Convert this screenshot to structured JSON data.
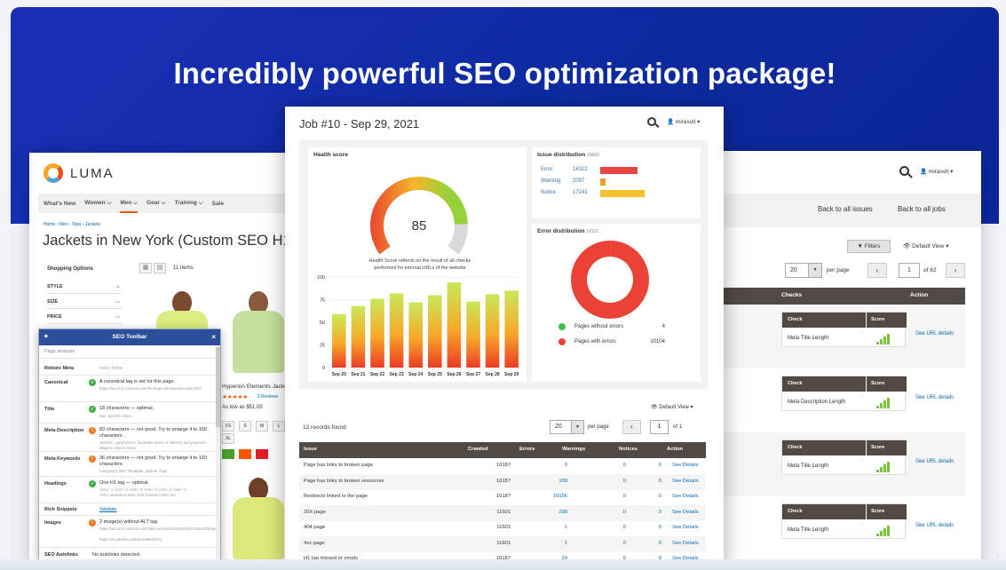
{
  "headline": "Incredibly powerful SEO optimization package!",
  "luma": {
    "brand": "LUMA",
    "nav": [
      "What's New",
      "Women ⌵",
      "Men ⌵",
      "Gear ⌵",
      "Training ⌵",
      "Sale"
    ],
    "breadcrumb": "Home  ›  Men  ›  Tops  ›  Jackets",
    "page_title": "Jackets in New York (Custom SEO H1",
    "shopping_options": "Shopping Options",
    "filters": [
      "STYLE",
      "SIZE",
      "PRICE"
    ],
    "items_count": "11 Items",
    "product_name": "Hyperion Elements Jacket",
    "stars": "★★★★★",
    "reviews": "2  Reviews",
    "price": "As low as $51.00",
    "sizes": [
      "XS",
      "S",
      "M",
      "L",
      "XL"
    ],
    "swatch_colors": [
      "#49a32b",
      "#ff5501",
      "#e31b23"
    ]
  },
  "seo_toolbar": {
    "title": "SEO Toolbar",
    "close": "×",
    "page_analysis": "Page analysis",
    "robots_meta": {
      "label": "Robots Meta",
      "value": "index,follow"
    },
    "canonical": {
      "label": "Canonical",
      "msg": "A canonical tag is set for this page.",
      "sub": "https://seo.m2.mirasvit.com/men/tops-men/jackets-men.html"
    },
    "title_row": {
      "label": "Title",
      "msg": "18 characters — optimal.",
      "sub": "Buy Jackets online"
    },
    "meta_description": {
      "label": "Meta Description",
      "msg": "83 characters — not good. Try to enlarge it to 160 characters.",
      "sub": "Jackets - good prices, favorable terms of delivery and payment - Magento Demo Store"
    },
    "meta_keywords": {
      "label": "Meta Keywords",
      "msg": "36 characters — not good. Try to enlarge it to 160 characters.",
      "sub": "Category's SEO Template: jackets, Tops"
    },
    "headings": {
      "label": "Headings",
      "msg": "One H1 tag — optimal.",
      "sub": "<H1>: 1  <H2>: 0  <H3>: 0  <H4>: 0  <H5>: 0  <H6>: 0",
      "sub2": "<H1> Jackets in New York (Custom SEO H1)"
    },
    "rich_snippets": {
      "label": "Rich Snippets",
      "link": "Validate"
    },
    "images": {
      "label": "Images",
      "msg": "2 image(s) without ALT tag",
      "sub": "https://seo.m2.mirasvit.com/static/version1621002418/frontend/Magento/luma/en_US/images/logo.svg",
      "sub2": "https://en.yandex.ru/watch/59640241"
    },
    "seo_autolinks": {
      "label": "SEO Autolinks",
      "msg": "No autolinks detected"
    }
  },
  "job": {
    "title": "Job #10 - Sep 29, 2021",
    "user": "mirasvit",
    "health": {
      "title": "Health score",
      "score": "85",
      "note": "Health Score reflects on the result of all checks performed for internal URLs of the website"
    },
    "issue_distribution": {
      "title": "Issue distribution",
      "total": "33660",
      "rows": [
        {
          "label": "Error",
          "value": "14322",
          "color": "#e94545"
        },
        {
          "label": "Warning",
          "value": "2097",
          "color": "#f39b32"
        },
        {
          "label": "Notice",
          "value": "17241",
          "color": "#f5c02d"
        }
      ]
    },
    "error_distribution": {
      "title": "Error distribution",
      "total": "14322",
      "legend": [
        {
          "label": "Pages without errors",
          "value": "4",
          "color": "#3bc14a"
        },
        {
          "label": "Pages with errors",
          "value": "10104",
          "color": "#ea4335"
        }
      ]
    },
    "default_view": "Default View",
    "records": "12 records found",
    "per_page_value": "20",
    "per_page": "per page",
    "page": "1",
    "of_pages": "of 1",
    "columns": [
      "Issue",
      "Crawled",
      "Errors",
      "Warnings",
      "Notices",
      "Action"
    ],
    "rows": [
      {
        "issue": "Page has links to broken page",
        "crawled": "10187",
        "errors": "0",
        "warnings": "0",
        "notices": "0",
        "action": "See Details"
      },
      {
        "issue": "Page has links to broken resources",
        "crawled": "10187",
        "errors": "109",
        "warnings": "0",
        "notices": "0",
        "action": "See Details"
      },
      {
        "issue": "Redirects linked to the page",
        "crawled": "10187",
        "errors": "10156",
        "warnings": "0",
        "notices": "0",
        "action": "See Details"
      },
      {
        "issue": "20X page",
        "crawled": "11601",
        "errors": "298",
        "warnings": "0",
        "notices": "0",
        "action": "See Details"
      },
      {
        "issue": "404 page",
        "crawled": "11601",
        "errors": "1",
        "warnings": "0",
        "notices": "0",
        "action": "See Details"
      },
      {
        "issue": "4xx page",
        "crawled": "11601",
        "errors": "1",
        "warnings": "0",
        "notices": "0",
        "action": "See Details"
      },
      {
        "issue": "H1 tag missed or empty",
        "crawled": "10187",
        "errors": "19",
        "warnings": "0",
        "notices": "0",
        "action": "See Details"
      }
    ]
  },
  "issues_window": {
    "user": "mirasvit",
    "back_issues": "Back to all issues",
    "back_jobs": "Back to all jobs",
    "filters": "Filters",
    "default_view": "Default View",
    "per_page_value": "20",
    "per_page": "per page",
    "page": "1",
    "of_pages": "of 62",
    "columns": [
      "Checks",
      "Action"
    ],
    "mini_cols": [
      "Check",
      "Score"
    ],
    "rows": [
      {
        "check": "Meta Title Length",
        "action": "See URL details"
      },
      {
        "check": "Meta Description Length",
        "action": "See URL details"
      },
      {
        "check": "Meta Title Length",
        "action": "See URL details"
      },
      {
        "check": "Meta Title Length",
        "action": "See URL details"
      }
    ]
  },
  "chart_data": {
    "type": "bar",
    "categories": [
      "Sep 20",
      "Sep 21",
      "Sep 22",
      "Sep 23",
      "Sep 24",
      "Sep 25",
      "Sep 26",
      "Sep 27",
      "Sep 28",
      "Sep 29"
    ],
    "values": [
      59,
      68,
      76,
      82,
      72,
      80,
      94,
      73,
      81,
      85
    ],
    "ylim": [
      0,
      100
    ],
    "yticks": [
      "0",
      "25",
      "50",
      "75",
      "100"
    ],
    "grid": true
  }
}
